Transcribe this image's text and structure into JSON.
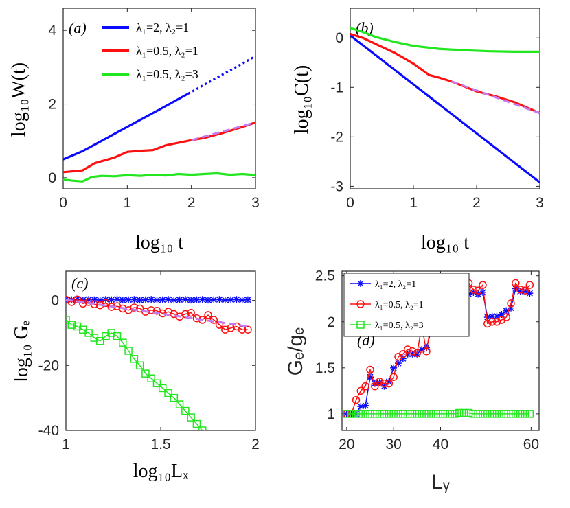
{
  "colors": {
    "blue": "#0a0aff",
    "red": "#ff1010",
    "green": "#22e61e",
    "dash": "#c47af0"
  },
  "chart_data": [
    {
      "id": "a",
      "type": "line",
      "panel_label": "(a)",
      "xlabel": "log₁₀ t",
      "ylabel": "log₁₀W(t)",
      "xlim": [
        0,
        3
      ],
      "ylim": [
        -0.3,
        4.6
      ],
      "xticks": [
        "0",
        "1",
        "2",
        "3"
      ],
      "xtick_values": [
        0,
        1,
        2,
        3
      ],
      "yticks": [
        "0",
        "2",
        "4"
      ],
      "ytick_values": [
        0,
        2,
        4
      ],
      "legend": [
        "λ₁=2,  λ₂=1",
        "λ₁=0.5,  λ₂=1",
        "λ₁=0.5,  λ₂=3"
      ],
      "series": [
        {
          "name": "λ₁=2, λ₂=1",
          "color": "blue",
          "style": "solid",
          "x": [
            0,
            0.3,
            0.6,
            1.0,
            1.5,
            1.95
          ],
          "y": [
            0.5,
            0.72,
            1.0,
            1.38,
            1.85,
            2.28
          ]
        },
        {
          "name": "fit-blue",
          "color": "blue",
          "style": "dotted",
          "x": [
            1.95,
            3.0
          ],
          "y": [
            2.28,
            3.3
          ]
        },
        {
          "name": "λ₁=0.5, λ₂=1",
          "color": "red",
          "style": "solid",
          "x": [
            0,
            0.3,
            0.5,
            0.8,
            1.0,
            1.2,
            1.4,
            1.6,
            1.8,
            2.0,
            2.2,
            2.5,
            2.8,
            3.0
          ],
          "y": [
            0.15,
            0.2,
            0.4,
            0.55,
            0.7,
            0.73,
            0.75,
            0.88,
            0.95,
            1.02,
            1.08,
            1.22,
            1.38,
            1.5
          ]
        },
        {
          "name": "λ₁=0.5, λ₂=3",
          "color": "green",
          "style": "solid",
          "x": [
            0,
            0.15,
            0.3,
            0.45,
            0.6,
            0.8,
            1.0,
            1.2,
            1.4,
            1.6,
            1.8,
            2.0,
            2.2,
            2.4,
            2.6,
            2.8,
            3.0
          ],
          "y": [
            -0.05,
            -0.08,
            -0.1,
            0.02,
            0.05,
            0.04,
            0.07,
            0.05,
            0.08,
            0.06,
            0.1,
            0.08,
            0.1,
            0.12,
            0.08,
            0.1,
            0.07
          ]
        },
        {
          "name": "fit-red",
          "color": "dash",
          "style": "dashed",
          "x": [
            2.0,
            3.0
          ],
          "y": [
            1.02,
            1.5
          ]
        }
      ]
    },
    {
      "id": "b",
      "type": "line",
      "panel_label": "(b)",
      "xlabel": "log₁₀ t",
      "ylabel": "log₁₀C(t)",
      "xlim": [
        0,
        3
      ],
      "ylim": [
        -3.05,
        0.6
      ],
      "xticks": [
        "0",
        "1",
        "2",
        "3"
      ],
      "xtick_values": [
        0,
        1,
        2,
        3
      ],
      "yticks": [
        "0",
        "-1",
        "-2",
        "-3"
      ],
      "ytick_values": [
        0,
        -1,
        -2,
        -3
      ],
      "series": [
        {
          "name": "λ₁=2, λ₂=1",
          "color": "blue",
          "style": "solid",
          "x": [
            0,
            3.0
          ],
          "y": [
            0.05,
            -2.92
          ]
        },
        {
          "name": "λ₁=0.5, λ₂=1",
          "color": "red",
          "style": "solid",
          "x": [
            0,
            0.2,
            0.4,
            0.7,
            1.0,
            1.25,
            1.4,
            1.6,
            1.8,
            2.0,
            2.3,
            2.6,
            3.0
          ],
          "y": [
            0.08,
            0.0,
            -0.12,
            -0.3,
            -0.52,
            -0.75,
            -0.8,
            -0.88,
            -0.98,
            -1.08,
            -1.18,
            -1.3,
            -1.52
          ]
        },
        {
          "name": "λ₁=0.5, λ₂=3",
          "color": "green",
          "style": "solid",
          "x": [
            0,
            0.2,
            0.4,
            0.7,
            1.0,
            1.4,
            1.8,
            2.2,
            2.6,
            3.0
          ],
          "y": [
            0.2,
            0.12,
            0.02,
            -0.08,
            -0.16,
            -0.22,
            -0.25,
            -0.27,
            -0.28,
            -0.28
          ]
        },
        {
          "name": "fit-red",
          "color": "dash",
          "style": "dashed",
          "x": [
            1.6,
            3.0
          ],
          "y": [
            -0.88,
            -1.52
          ]
        }
      ]
    },
    {
      "id": "c",
      "type": "line",
      "panel_label": "(c)",
      "xlabel": "log₁₀Lₓ",
      "ylabel": "log₁₀ Gₑ",
      "xlim": [
        1,
        2
      ],
      "ylim": [
        -40,
        9
      ],
      "xticks": [
        "1",
        "1.5",
        "2"
      ],
      "xtick_values": [
        1,
        1.5,
        2
      ],
      "yticks": [
        "0",
        "-20",
        "-40"
      ],
      "ytick_values": [
        0,
        -20,
        -40
      ],
      "series": [
        {
          "name": "λ₁=2, λ₂=1",
          "color": "blue",
          "marker": "star",
          "x": [
            1.0,
            1.03,
            1.06,
            1.09,
            1.12,
            1.15,
            1.18,
            1.21,
            1.24,
            1.27,
            1.3,
            1.33,
            1.36,
            1.39,
            1.42,
            1.45,
            1.48,
            1.51,
            1.54,
            1.57,
            1.6,
            1.63,
            1.66,
            1.69,
            1.72,
            1.75,
            1.78,
            1.81,
            1.84,
            1.87,
            1.9,
            1.93,
            1.96
          ],
          "y": [
            0.3,
            0.2,
            0.4,
            0.1,
            0.3,
            0.2,
            0.1,
            0.3,
            0.2,
            0.4,
            0.1,
            0.2,
            0.3,
            0.1,
            0.2,
            0.3,
            0.1,
            0.2,
            0.3,
            0.1,
            0.2,
            0.3,
            0.1,
            0.2,
            0.3,
            0.1,
            0.2,
            0.3,
            0.1,
            0.2,
            0.3,
            0.1,
            0.2
          ]
        },
        {
          "name": "λ₁=0.5, λ₂=1",
          "color": "red",
          "marker": "circle",
          "x": [
            1.0,
            1.03,
            1.06,
            1.09,
            1.12,
            1.15,
            1.18,
            1.21,
            1.24,
            1.27,
            1.3,
            1.33,
            1.36,
            1.39,
            1.42,
            1.45,
            1.48,
            1.51,
            1.54,
            1.57,
            1.6,
            1.63,
            1.66,
            1.69,
            1.72,
            1.75,
            1.78,
            1.81,
            1.84,
            1.87,
            1.9,
            1.93,
            1.96
          ],
          "y": [
            0.2,
            -0.5,
            0.3,
            -1.0,
            -0.5,
            -1.2,
            -1.5,
            -0.8,
            -2.0,
            -1.8,
            -2.5,
            -3.0,
            -2.2,
            -2.5,
            -3.5,
            -3.0,
            -3.2,
            -4.0,
            -3.5,
            -4.2,
            -5.0,
            -4.2,
            -3.8,
            -5.5,
            -6.0,
            -4.5,
            -6.0,
            -7.5,
            -9.0,
            -8.5,
            -8.0,
            -9.0,
            -9.0
          ]
        },
        {
          "name": "λ₁=0.5, λ₂=3",
          "color": "green",
          "marker": "square",
          "x": [
            1.0,
            1.03,
            1.06,
            1.09,
            1.12,
            1.15,
            1.18,
            1.21,
            1.24,
            1.27,
            1.3,
            1.33,
            1.36,
            1.39,
            1.42,
            1.45,
            1.48,
            1.51,
            1.54,
            1.57,
            1.6,
            1.63,
            1.66,
            1.69,
            1.72
          ],
          "y": [
            -6,
            -7.5,
            -8,
            -9,
            -10,
            -11.5,
            -12.5,
            -11,
            -10,
            -11,
            -13,
            -15.5,
            -18,
            -20,
            -22.5,
            -24,
            -25.5,
            -27,
            -28.5,
            -30,
            -32,
            -34,
            -36,
            -38,
            -40
          ]
        },
        {
          "name": "fit-red",
          "color": "dash",
          "style": "dashed",
          "x": [
            1.0,
            1.96
          ],
          "y": [
            0.2,
            -8.0
          ]
        }
      ]
    },
    {
      "id": "d",
      "type": "line",
      "panel_label": "(d)",
      "xlabel": "Lᵧ",
      "ylabel": "Gₑ/gₑ",
      "xlim": [
        19,
        61
      ],
      "ylim": [
        0.82,
        2.55
      ],
      "xticks": [
        "20",
        "30",
        "40",
        "60"
      ],
      "xtick_values": [
        20,
        30,
        40,
        59.3
      ],
      "yticks": [
        "1",
        "1.5",
        "2",
        "2.5"
      ],
      "ytick_values": [
        1,
        1.5,
        2,
        2.5
      ],
      "legend": [
        "λ₁=2,  λ₂=1",
        "λ₁=0.5,  λ₂=1",
        "λ₁=0.5,  λ₂=3"
      ],
      "series": [
        {
          "name": "λ₁=2, λ₂=1",
          "color": "blue",
          "marker": "star",
          "x": [
            20,
            21,
            22,
            23,
            24,
            25,
            26,
            27,
            28,
            29,
            30,
            31,
            32,
            33,
            34,
            35,
            36,
            37,
            38,
            39,
            40,
            41,
            42,
            43,
            44,
            45,
            46,
            47,
            48,
            49,
            50,
            51,
            52,
            53,
            54,
            55,
            56,
            57,
            58,
            59
          ],
          "y": [
            1.0,
            1.0,
            1.0,
            1.08,
            1.09,
            1.4,
            1.33,
            1.34,
            1.3,
            1.35,
            1.5,
            1.55,
            1.6,
            1.65,
            1.65,
            1.65,
            1.7,
            1.72,
            1.9,
            1.95,
            1.98,
            1.99,
            2.0,
            2.0,
            2.02,
            2.1,
            2.3,
            2.32,
            2.3,
            2.32,
            2.05,
            2.06,
            2.06,
            2.08,
            2.12,
            2.15,
            2.36,
            2.33,
            2.33,
            2.31
          ]
        },
        {
          "name": "λ₁=0.5, λ₂=1",
          "color": "red",
          "marker": "circle",
          "x": [
            20,
            21,
            22,
            23,
            24,
            25,
            26,
            27,
            28,
            29,
            30,
            31,
            32,
            33,
            34,
            35,
            36,
            37,
            38,
            39,
            40,
            41,
            42,
            43,
            44,
            45,
            46,
            47,
            48,
            49,
            50,
            51,
            52,
            53,
            54,
            55,
            56,
            57,
            58,
            59
          ],
          "y": [
            1.0,
            1.0,
            1.15,
            1.25,
            1.3,
            1.48,
            1.3,
            1.35,
            1.33,
            1.33,
            1.4,
            1.62,
            1.65,
            1.7,
            1.68,
            1.66,
            1.95,
            1.68,
            1.98,
            1.96,
            1.97,
            1.98,
            2.0,
            2.02,
            2.05,
            2.2,
            2.42,
            2.35,
            2.34,
            2.4,
            1.98,
            2.0,
            2.0,
            2.02,
            2.05,
            2.2,
            2.42,
            2.35,
            2.34,
            2.4
          ]
        },
        {
          "name": "λ₁=0.5, λ₂=3",
          "color": "green",
          "marker": "square",
          "x": [
            20,
            21,
            22,
            23,
            24,
            25,
            26,
            27,
            28,
            29,
            30,
            31,
            32,
            33,
            34,
            35,
            36,
            37,
            38,
            39,
            40,
            41,
            42,
            43,
            44,
            45,
            46,
            47,
            48,
            49,
            50,
            51,
            52,
            53,
            54,
            55,
            56,
            57,
            58,
            59
          ],
          "y": [
            1.0,
            1.0,
            1.0,
            1.0,
            1.0,
            1.0,
            1.0,
            1.0,
            1.0,
            1.0,
            1.0,
            1.0,
            1.0,
            1.0,
            1.0,
            1.0,
            1.0,
            1.0,
            1.0,
            1.0,
            1.0,
            1.0,
            1.0,
            1.0,
            1.01,
            1.01,
            1.01,
            1.0,
            1.0,
            1.0,
            1.0,
            1.0,
            1.0,
            1.0,
            1.0,
            1.0,
            1.0,
            1.0,
            1.0,
            1.0
          ]
        }
      ]
    }
  ]
}
